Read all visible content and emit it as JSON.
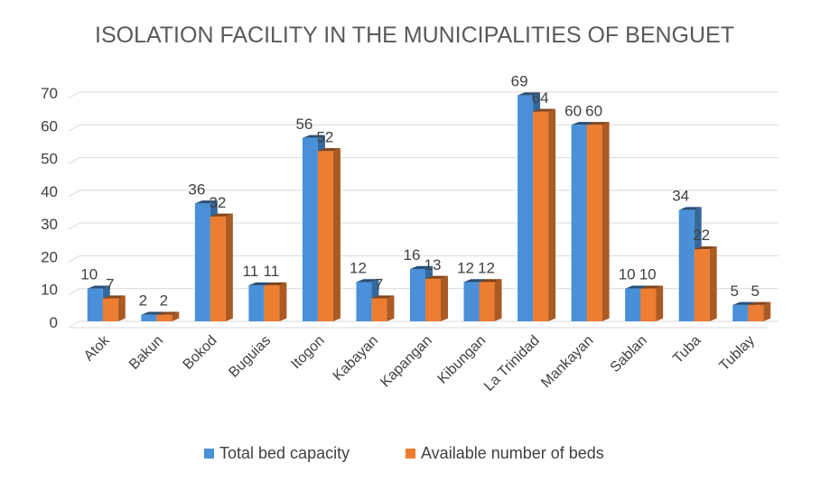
{
  "chart_data": {
    "type": "bar",
    "title": "ISOLATION FACILITY IN THE MUNICIPALITIES OF BENGUET",
    "xlabel": "",
    "ylabel": "",
    "ylim": [
      0,
      70
    ],
    "yticks": [
      0,
      10,
      20,
      30,
      40,
      50,
      60,
      70
    ],
    "grid": true,
    "legend_position": "bottom",
    "categories": [
      "Atok",
      "Bakun",
      "Bokod",
      "Buguias",
      "Itogon",
      "Kabayan",
      "Kapangan",
      "Kibungan",
      "La Trinidad",
      "Mankayan",
      "Sablan",
      "Tuba",
      "Tublay"
    ],
    "series": [
      {
        "name": "Total bed capacity",
        "color": "#4a90d9",
        "values": [
          10,
          2,
          36,
          11,
          56,
          12,
          16,
          12,
          69,
          60,
          10,
          34,
          5
        ]
      },
      {
        "name": "Available number of beds",
        "color": "#ed7d31",
        "values": [
          7,
          2,
          32,
          11,
          52,
          7,
          13,
          12,
          64,
          60,
          10,
          22,
          5
        ]
      }
    ]
  }
}
